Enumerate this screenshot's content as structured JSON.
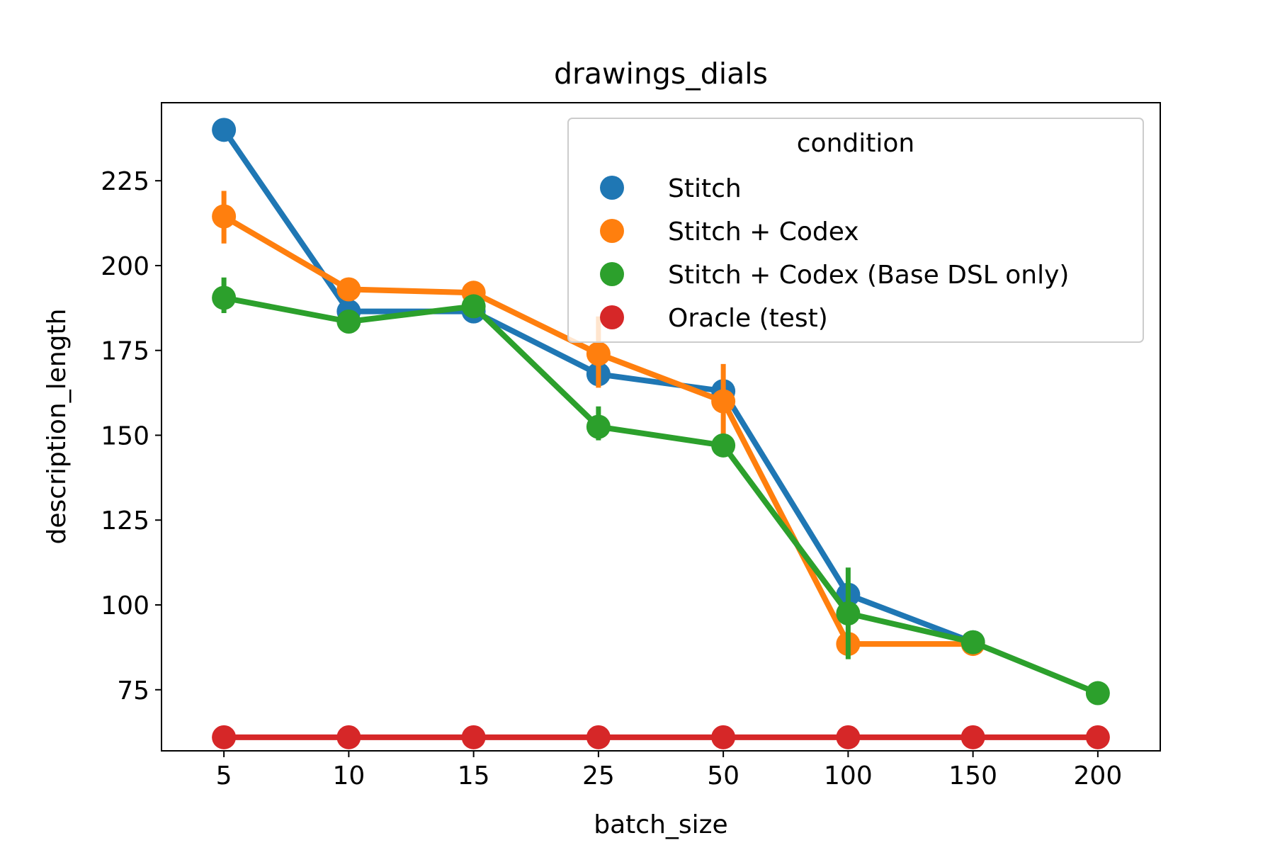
{
  "chart_data": {
    "type": "line",
    "title": "drawings_dials",
    "xlabel": "batch_size",
    "ylabel": "description_length",
    "categories": [
      "5",
      "10",
      "15",
      "25",
      "50",
      "100",
      "150",
      "200"
    ],
    "ylim": [
      57,
      248
    ],
    "yticks": [
      75,
      100,
      125,
      150,
      175,
      200,
      225
    ],
    "grid": false,
    "legend": {
      "title": "condition",
      "placement": "top-right"
    },
    "series": [
      {
        "name": "Stitch",
        "color": "#1f77b4",
        "values": [
          240,
          186.5,
          186.5,
          168,
          163,
          103,
          89,
          null
        ],
        "errors": [
          null,
          null,
          null,
          null,
          null,
          null,
          null,
          null
        ]
      },
      {
        "name": "Stitch + Codex",
        "color": "#ff7f0e",
        "values": [
          214.5,
          193,
          192,
          174,
          160,
          88.5,
          88.5,
          null
        ],
        "errors": [
          [
            206.5,
            222
          ],
          null,
          null,
          [
            164,
            185
          ],
          [
            150,
            171
          ],
          null,
          null,
          null
        ]
      },
      {
        "name": "Stitch + Codex (Base DSL only)",
        "color": "#2ca02c",
        "values": [
          190.5,
          183.5,
          188,
          152.5,
          147,
          97.5,
          89,
          74
        ],
        "errors": [
          [
            186,
            196.5
          ],
          null,
          null,
          [
            148.5,
            158.5
          ],
          null,
          [
            84,
            111
          ],
          null,
          null
        ]
      },
      {
        "name": "Oracle (test)",
        "color": "#d62728",
        "values": [
          61,
          61,
          61,
          61,
          61,
          61,
          61,
          61
        ],
        "errors": [
          null,
          null,
          null,
          null,
          null,
          null,
          null,
          null
        ]
      }
    ]
  }
}
